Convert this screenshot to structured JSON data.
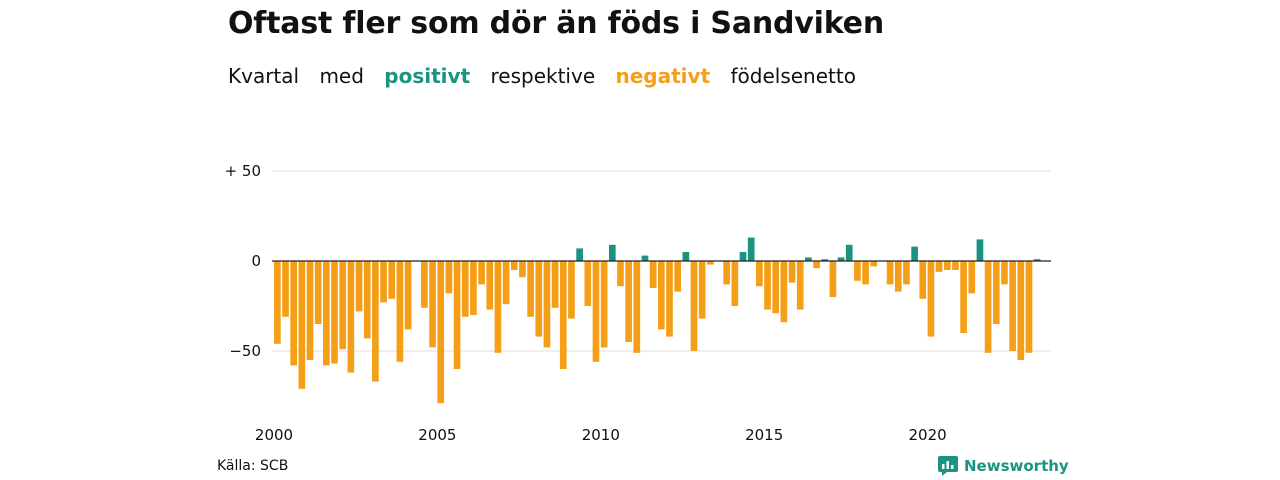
{
  "title": "Oftast fler som dör än föds i Sandviken",
  "subtitle": {
    "w1": "Kvartal",
    "w2": "med",
    "positive": "positivt",
    "w3": "respektive",
    "negative": "negativt",
    "w4": "födelsenetto"
  },
  "source": "Källa: SCB",
  "brand": "Newsworthy",
  "colors": {
    "positive": "#1a9381",
    "negative": "#f59f19",
    "grid": "#dddddd",
    "zero": "#222222"
  },
  "chart_data": {
    "type": "bar",
    "x_start": 2000,
    "x_end": 2024,
    "quarters_per_year": 4,
    "ylim": [
      -80,
      50
    ],
    "y_ticks": [
      50,
      0,
      -50
    ],
    "y_tick_labels": [
      "+ 50",
      "0",
      "−50"
    ],
    "x_ticks": [
      2000,
      2005,
      2010,
      2015,
      2020
    ],
    "x_tick_labels": [
      "2000",
      "2005",
      "2010",
      "2015",
      "2020"
    ],
    "values": [
      -46,
      -31,
      -58,
      -71,
      -55,
      -35,
      -58,
      -57,
      -49,
      -62,
      -28,
      -43,
      -67,
      -23,
      -21,
      -56,
      -38,
      0,
      -26,
      -48,
      -79,
      -18,
      -60,
      -31,
      -30,
      -13,
      -27,
      -51,
      -24,
      -5,
      -9,
      -31,
      -42,
      -48,
      -26,
      -60,
      -32,
      7,
      -25,
      -56,
      -48,
      9,
      -14,
      -45,
      -51,
      3,
      -15,
      -38,
      -42,
      -17,
      5,
      -50,
      -32,
      -2,
      0,
      -13,
      -25,
      5,
      13,
      -14,
      -27,
      -29,
      -34,
      -12,
      -27,
      2,
      -4,
      1,
      -20,
      2,
      9,
      -11,
      -13,
      -3,
      0,
      -13,
      -17,
      -13,
      8,
      -21,
      -42,
      -6,
      -5,
      -5,
      -40,
      -18,
      12,
      -51,
      -35,
      -13,
      -50,
      -55,
      -51,
      1
    ],
    "grid": true,
    "legend": "none"
  }
}
